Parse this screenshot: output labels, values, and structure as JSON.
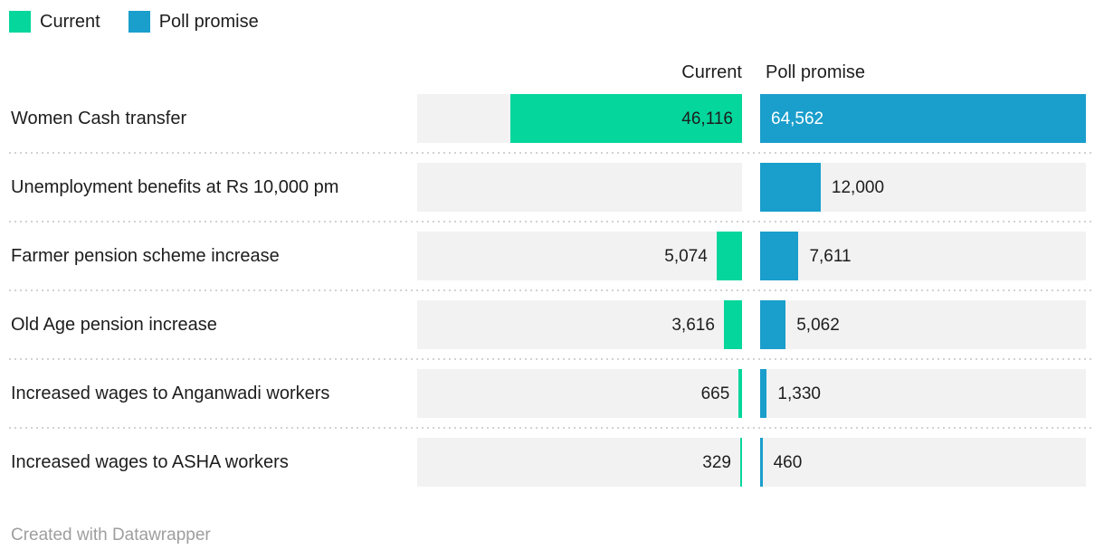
{
  "legend": {
    "items": [
      {
        "label": "Current",
        "color": "#04d69c"
      },
      {
        "label": "Poll promise",
        "color": "#1a9ecc"
      }
    ]
  },
  "column_headers": {
    "current": "Current",
    "promise": "Poll promise"
  },
  "footer": {
    "text": "Created with Datawrapper"
  },
  "colors": {
    "current_bar": "#04d69c",
    "promise_bar": "#1a9ecc",
    "track": "#f2f2f2",
    "label_dark": "#1d1d1d",
    "label_light": "#ffffff",
    "separator": "#d2d2d2",
    "footer_text": "#9e9e9e"
  },
  "chart_data": {
    "type": "bar",
    "orientation": "horizontal",
    "title": "",
    "xlabel": "",
    "ylabel": "",
    "max_value": 64562,
    "grid": false,
    "legend_position": "top-left",
    "categories": [
      "Women Cash transfer",
      "Unemployment benefits at Rs 10,000 pm",
      "Farmer pension scheme increase",
      "Old Age pension increase",
      "Increased wages to Anganwadi workers",
      "Increased wages to ASHA workers"
    ],
    "series": [
      {
        "name": "Current",
        "color": "#04d69c",
        "values": [
          46116,
          null,
          5074,
          3616,
          665,
          329
        ],
        "value_labels": [
          "46,116",
          "",
          "5,074",
          "3,616",
          "665",
          "329"
        ]
      },
      {
        "name": "Poll promise",
        "color": "#1a9ecc",
        "values": [
          64562,
          12000,
          7611,
          5062,
          1330,
          460
        ],
        "value_labels": [
          "64,562",
          "12,000",
          "7,611",
          "5,062",
          "1,330",
          "460"
        ]
      }
    ]
  }
}
